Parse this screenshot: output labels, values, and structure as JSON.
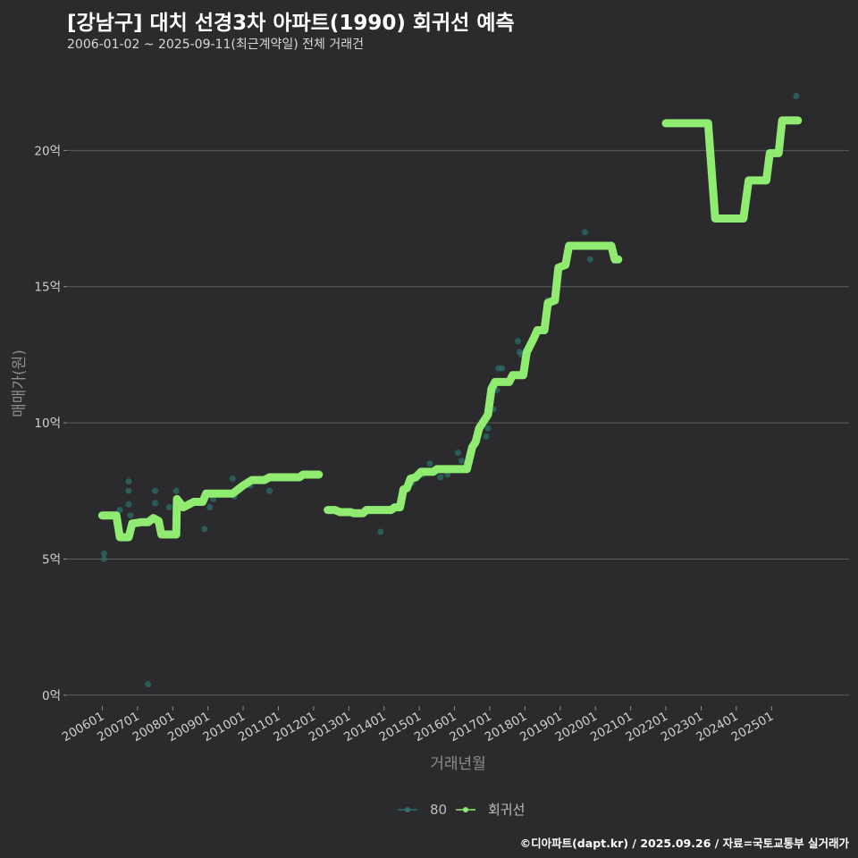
{
  "chart_data": {
    "type": "line",
    "title": "[강남구] 대치 선경3차 아파트(1990) 회귀선 예측",
    "subtitle": "2006-01-02 ~ 2025-09-11(최근계약일) 전체 거래건",
    "xlabel": "거래년월",
    "ylabel": "매매가(원)",
    "ylim": [
      -0.4,
      22.9
    ],
    "xlim": [
      2005.0,
      2027.2
    ],
    "yticks": [
      0,
      5,
      10,
      15,
      20
    ],
    "ytick_labels": [
      "0억",
      "5억",
      "10억",
      "15억",
      "20억"
    ],
    "xtick_values": [
      2006,
      2007,
      2008,
      2009,
      2010,
      2011,
      2012,
      2013,
      2014,
      2015,
      2016,
      2017,
      2018,
      2019,
      2020,
      2021,
      2022,
      2023,
      2024,
      2025
    ],
    "xtick_labels": [
      "200601",
      "200701",
      "200801",
      "200901",
      "201001",
      "201101",
      "201201",
      "201301",
      "201401",
      "201501",
      "201601",
      "201701",
      "201801",
      "201901",
      "202001",
      "202101",
      "202201",
      "202301",
      "202401",
      "202501"
    ],
    "grid": true,
    "legend_position": "bottom",
    "series": [
      {
        "name": "80",
        "kind": "scatter",
        "color": "#2e6e6a",
        "points": [
          [
            2006.05,
            5.2
          ],
          [
            2006.05,
            5.0
          ],
          [
            2006.5,
            6.8
          ],
          [
            2006.75,
            7.85
          ],
          [
            2006.75,
            7.5
          ],
          [
            2006.75,
            7.0
          ],
          [
            2006.8,
            6.6
          ],
          [
            2007.0,
            6.3
          ],
          [
            2007.3,
            0.4
          ],
          [
            2007.5,
            7.5
          ],
          [
            2007.5,
            7.05
          ],
          [
            2007.6,
            6.4
          ],
          [
            2007.9,
            6.9
          ],
          [
            2008.1,
            7.5
          ],
          [
            2008.2,
            7.1
          ],
          [
            2008.5,
            7.0
          ],
          [
            2008.9,
            6.1
          ],
          [
            2009.05,
            6.9
          ],
          [
            2009.15,
            7.2
          ],
          [
            2009.7,
            7.95
          ],
          [
            2009.75,
            7.3
          ],
          [
            2010.2,
            7.7
          ],
          [
            2010.5,
            7.85
          ],
          [
            2010.75,
            7.5
          ],
          [
            2013.9,
            6.0
          ],
          [
            2014.8,
            7.8
          ],
          [
            2015.1,
            8.1
          ],
          [
            2015.3,
            8.5
          ],
          [
            2015.6,
            8.0
          ],
          [
            2015.8,
            8.1
          ],
          [
            2016.0,
            8.3
          ],
          [
            2016.1,
            8.9
          ],
          [
            2016.2,
            8.6
          ],
          [
            2016.9,
            9.5
          ],
          [
            2016.95,
            9.8
          ],
          [
            2017.1,
            10.5
          ],
          [
            2017.2,
            11.2
          ],
          [
            2017.25,
            12.0
          ],
          [
            2017.35,
            12.0
          ],
          [
            2017.8,
            13.0
          ],
          [
            2017.85,
            12.6
          ],
          [
            2017.9,
            12.5
          ],
          [
            2018.65,
            14.5
          ],
          [
            2019.7,
            17.0
          ],
          [
            2019.85,
            16.0
          ],
          [
            2025.7,
            22.0
          ]
        ]
      },
      {
        "name": "회귀선",
        "kind": "line",
        "color": "#8fec70",
        "segments": [
          [
            [
              2006.0,
              6.6
            ],
            [
              2006.4,
              6.6
            ],
            [
              2006.5,
              5.8
            ],
            [
              2006.75,
              5.8
            ],
            [
              2006.85,
              6.3
            ],
            [
              2007.1,
              6.35
            ],
            [
              2007.3,
              6.35
            ],
            [
              2007.45,
              6.5
            ],
            [
              2007.6,
              6.4
            ],
            [
              2007.68,
              5.9
            ],
            [
              2008.1,
              5.9
            ],
            [
              2008.12,
              7.2
            ],
            [
              2008.3,
              6.9
            ],
            [
              2008.6,
              7.1
            ],
            [
              2008.85,
              7.1
            ],
            [
              2008.95,
              7.4
            ],
            [
              2009.7,
              7.4
            ],
            [
              2010.0,
              7.7
            ],
            [
              2010.25,
              7.9
            ],
            [
              2010.6,
              7.9
            ],
            [
              2010.75,
              8.0
            ],
            [
              2011.6,
              8.0
            ],
            [
              2011.7,
              8.1
            ],
            [
              2012.15,
              8.1
            ]
          ],
          [
            [
              2012.4,
              6.8
            ],
            [
              2012.6,
              6.8
            ],
            [
              2012.75,
              6.72
            ],
            [
              2013.05,
              6.72
            ],
            [
              2013.15,
              6.68
            ],
            [
              2013.4,
              6.68
            ],
            [
              2013.5,
              6.8
            ],
            [
              2014.2,
              6.8
            ],
            [
              2014.3,
              6.9
            ],
            [
              2014.45,
              6.9
            ],
            [
              2014.55,
              7.55
            ],
            [
              2014.65,
              7.6
            ],
            [
              2014.75,
              7.95
            ],
            [
              2014.9,
              8.0
            ],
            [
              2015.05,
              8.2
            ],
            [
              2015.4,
              8.2
            ],
            [
              2015.5,
              8.3
            ],
            [
              2016.35,
              8.3
            ],
            [
              2016.5,
              9.1
            ],
            [
              2016.6,
              9.3
            ],
            [
              2016.7,
              9.8
            ],
            [
              2016.95,
              10.3
            ],
            [
              2017.05,
              11.25
            ],
            [
              2017.15,
              11.5
            ],
            [
              2017.55,
              11.5
            ],
            [
              2017.65,
              11.75
            ],
            [
              2017.95,
              11.75
            ],
            [
              2018.05,
              12.6
            ],
            [
              2018.25,
              13.1
            ],
            [
              2018.35,
              13.4
            ],
            [
              2018.55,
              13.4
            ],
            [
              2018.65,
              14.4
            ],
            [
              2018.85,
              14.5
            ],
            [
              2018.95,
              15.7
            ],
            [
              2019.15,
              15.8
            ],
            [
              2019.25,
              16.5
            ],
            [
              2020.45,
              16.5
            ],
            [
              2020.55,
              16.0
            ],
            [
              2020.65,
              16.0
            ]
          ],
          [
            [
              2022.0,
              21.0
            ],
            [
              2022.3,
              21.0
            ],
            [
              2023.2,
              21.0
            ],
            [
              2023.4,
              17.5
            ],
            [
              2024.2,
              17.5
            ],
            [
              2024.35,
              18.9
            ],
            [
              2024.85,
              18.9
            ],
            [
              2024.95,
              19.9
            ],
            [
              2025.2,
              19.9
            ],
            [
              2025.3,
              21.1
            ],
            [
              2025.75,
              21.1
            ]
          ]
        ]
      }
    ]
  },
  "footer": {
    "credit": "©디아파트(dapt.kr) / 2025.09.26 / 자료=국토교통부 실거래가"
  }
}
